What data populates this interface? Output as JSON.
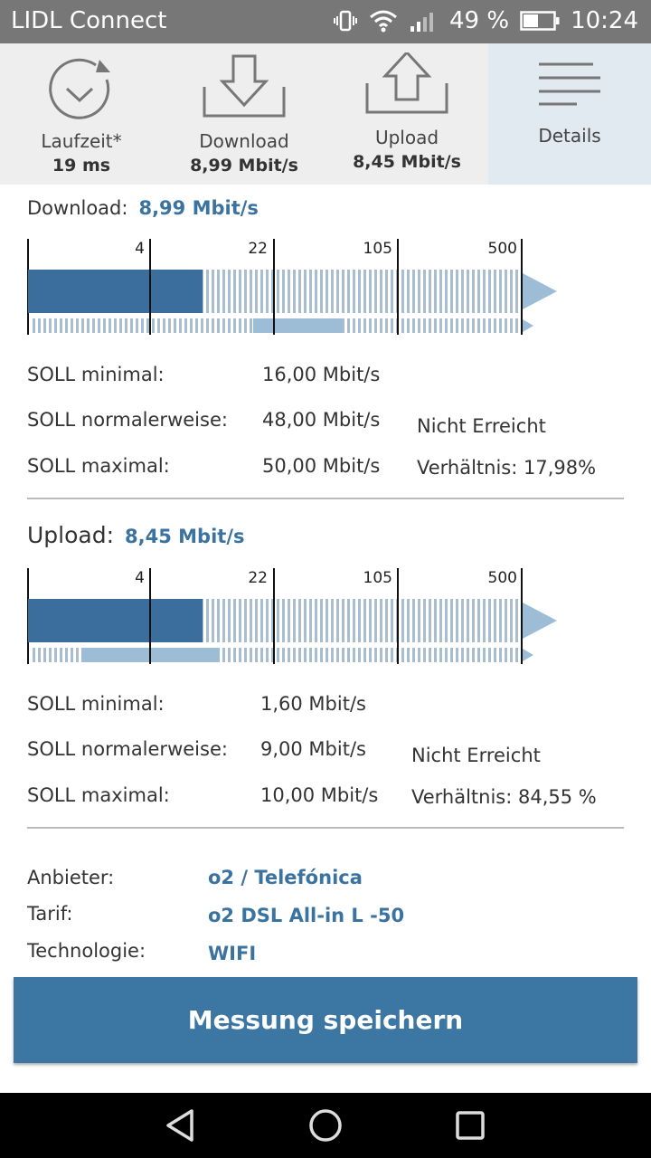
{
  "status_bar": {
    "app_title": "LIDL Connect",
    "battery": "49 %",
    "time": "10:24"
  },
  "tabs": [
    {
      "label": "Laufzeit*",
      "value": "19 ms",
      "icon": "timer-icon"
    },
    {
      "label": "Download",
      "value": "8,99 Mbit/s",
      "icon": "download-icon"
    },
    {
      "label": "Upload",
      "value": "8,45 Mbit/s",
      "icon": "upload-icon"
    },
    {
      "label": "Details",
      "value": "",
      "icon": "menu-lines-icon"
    }
  ],
  "download": {
    "label": "Download:",
    "value": "8,99 Mbit/s",
    "scale_ticks": [
      "4",
      "22",
      "105",
      "500"
    ],
    "soll_min_label": "SOLL minimal:",
    "soll_min_value": "16,00 Mbit/s",
    "soll_norm_label": "SOLL normalerweise:",
    "soll_norm_value": "48,00 Mbit/s",
    "soll_max_label": "SOLL maximal:",
    "soll_max_value": "50,00 Mbit/s",
    "status": "Nicht Erreicht",
    "ratio": "Verhältnis: 17,98%"
  },
  "upload": {
    "label": "Upload:",
    "value": "8,45 Mbit/s",
    "scale_ticks": [
      "4",
      "22",
      "105",
      "500"
    ],
    "soll_min_label": "SOLL minimal:",
    "soll_min_value": "1,60 Mbit/s",
    "soll_norm_label": "SOLL normalerweise:",
    "soll_norm_value": "9,00 Mbit/s",
    "soll_max_label": "SOLL maximal:",
    "soll_max_value": "10,00 Mbit/s",
    "status": "Nicht Erreicht",
    "ratio": "Verhältnis: 84,55 %"
  },
  "details": {
    "provider_label": "Anbieter:",
    "provider_value": "o2 / Telefónica",
    "tariff_label": "Tarif:",
    "tariff_value": "o2 DSL All-in L -50",
    "tech_label": "Technologie:",
    "tech_value": "WIFI"
  },
  "save_button": "Messung speichern",
  "colors": {
    "accent": "#3c77a4",
    "bar_dark": "#3b6e9c",
    "bar_light": "#9dbdd6",
    "tab_active": "#e1e9f1"
  }
}
